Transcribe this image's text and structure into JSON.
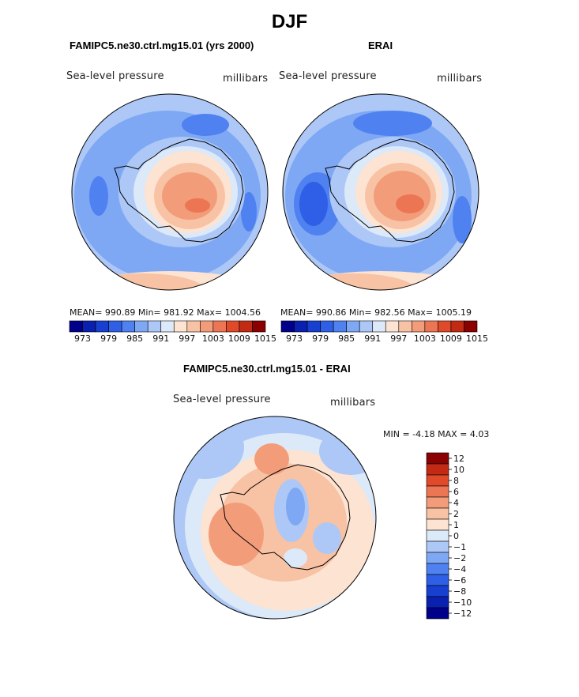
{
  "figure": {
    "title": "DJF",
    "panel_left_title": "FAMIPC5.ne30.ctrl.mg15.01 (yrs 2000)",
    "panel_right_title": "ERAI",
    "panel_diff_title": "FAMIPC5.ne30.ctrl.mg15.01 - ERAI"
  },
  "panels": {
    "left": {
      "variable": "Sea-level pressure",
      "units": "millibars",
      "stats": "MEAN= 990.89   Min= 981.92   Max= 1004.56"
    },
    "right": {
      "variable": "Sea-level pressure",
      "units": "millibars",
      "stats": "MEAN= 990.86   Min= 982.56   Max= 1005.19"
    },
    "diff": {
      "variable": "Sea-level pressure",
      "units": "millibars",
      "stats": "MIN =   -4.18 MAX =    4.03"
    }
  },
  "colors": {
    "abs_scale": [
      "#00008b",
      "#0a20b0",
      "#1840d0",
      "#2e5fe6",
      "#4f82f0",
      "#7fa8f4",
      "#adc8f6",
      "#dce9f8",
      "#fde3d2",
      "#f8c2a4",
      "#f29c7a",
      "#ec7553",
      "#e04a2b",
      "#c22a14",
      "#8b0000"
    ],
    "diff_scale": [
      "#00008b",
      "#0a20b0",
      "#1840d0",
      "#2e5fe6",
      "#4f82f0",
      "#7fa8f4",
      "#adc8f6",
      "#dce9f8",
      "#fde3d2",
      "#f8c2a4",
      "#f29c7a",
      "#ec7553",
      "#e04a2b",
      "#c22a14",
      "#8b0000"
    ]
  },
  "chart_data": [
    {
      "type": "heatmap",
      "projection": "south-polar-stereographic",
      "title": "FAMIPC5.ne30.ctrl.mg15.01 (yrs 2000)",
      "field": "Sea-level pressure",
      "units": "millibars",
      "mean": 990.89,
      "min": 981.92,
      "max": 1004.56,
      "colorbar_ticks": [
        "973",
        "979",
        "985",
        "991",
        "997",
        "1003",
        "1009",
        "1015"
      ]
    },
    {
      "type": "heatmap",
      "projection": "south-polar-stereographic",
      "title": "ERAI",
      "field": "Sea-level pressure",
      "units": "millibars",
      "mean": 990.86,
      "min": 982.56,
      "max": 1005.19,
      "colorbar_ticks": [
        "973",
        "979",
        "985",
        "991",
        "997",
        "1003",
        "1009",
        "1015"
      ]
    },
    {
      "type": "heatmap",
      "projection": "south-polar-stereographic",
      "title": "FAMIPC5.ne30.ctrl.mg15.01 - ERAI",
      "field": "Sea-level pressure",
      "units": "millibars",
      "min": -4.18,
      "max": 4.03,
      "colorbar_ticks": [
        "12",
        "10",
        "8",
        "6",
        "4",
        "2",
        "1",
        "0",
        "−1",
        "−2",
        "−4",
        "−6",
        "−8",
        "−10",
        "−12"
      ]
    }
  ]
}
